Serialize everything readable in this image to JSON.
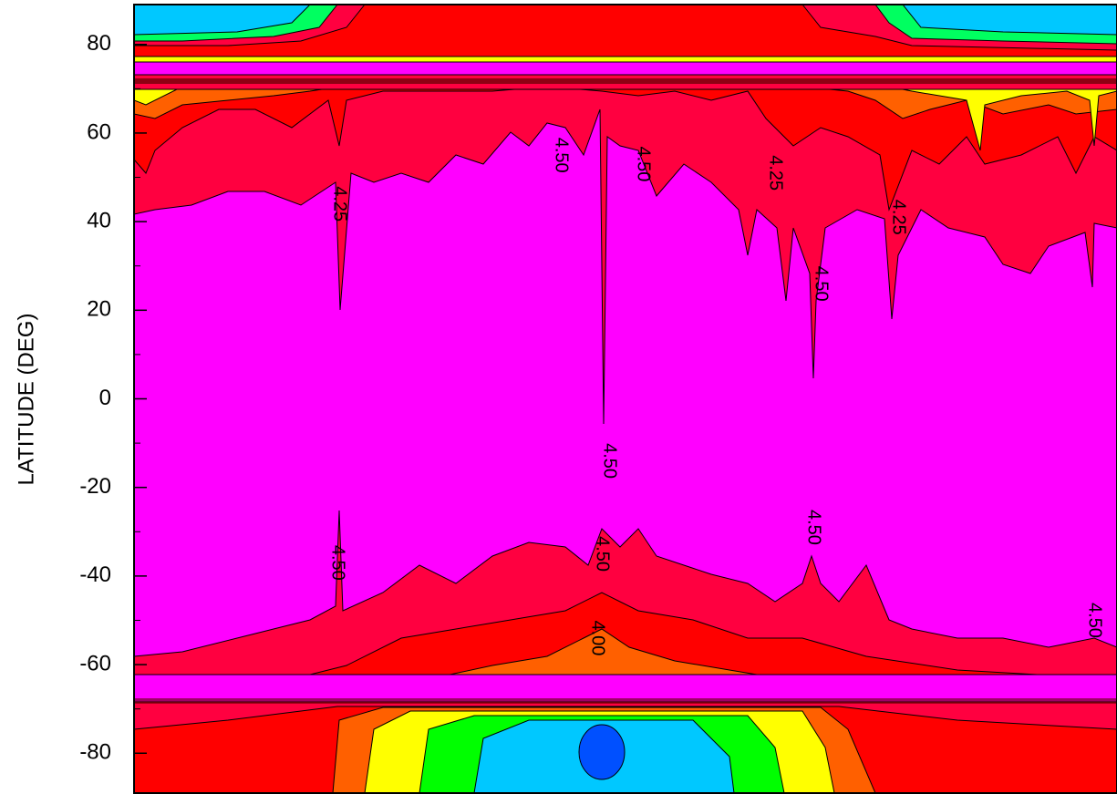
{
  "chart_data": {
    "type": "contour",
    "y_label": "LATITUDE (DEG)",
    "ylim": [
      -89,
      89
    ],
    "yticks": [
      -80,
      -60,
      -40,
      -20,
      0,
      20,
      40,
      60,
      80
    ],
    "contour_labels": [
      {
        "label": "4.25",
        "lat": 44
      },
      {
        "label": "4.50",
        "lat": 55
      },
      {
        "label": "4.50",
        "lat": 53
      },
      {
        "label": "4.25",
        "lat": 51
      },
      {
        "label": "4.50",
        "lat": 26
      },
      {
        "label": "4.25",
        "lat": 41
      },
      {
        "label": "4.50",
        "lat": -14
      },
      {
        "label": "4.50",
        "lat": -37
      },
      {
        "label": "4.50",
        "lat": -35
      },
      {
        "label": "4.00",
        "lat": -54
      },
      {
        "label": "4.50",
        "lat": -29
      },
      {
        "label": "4.50",
        "lat": -50
      }
    ]
  }
}
